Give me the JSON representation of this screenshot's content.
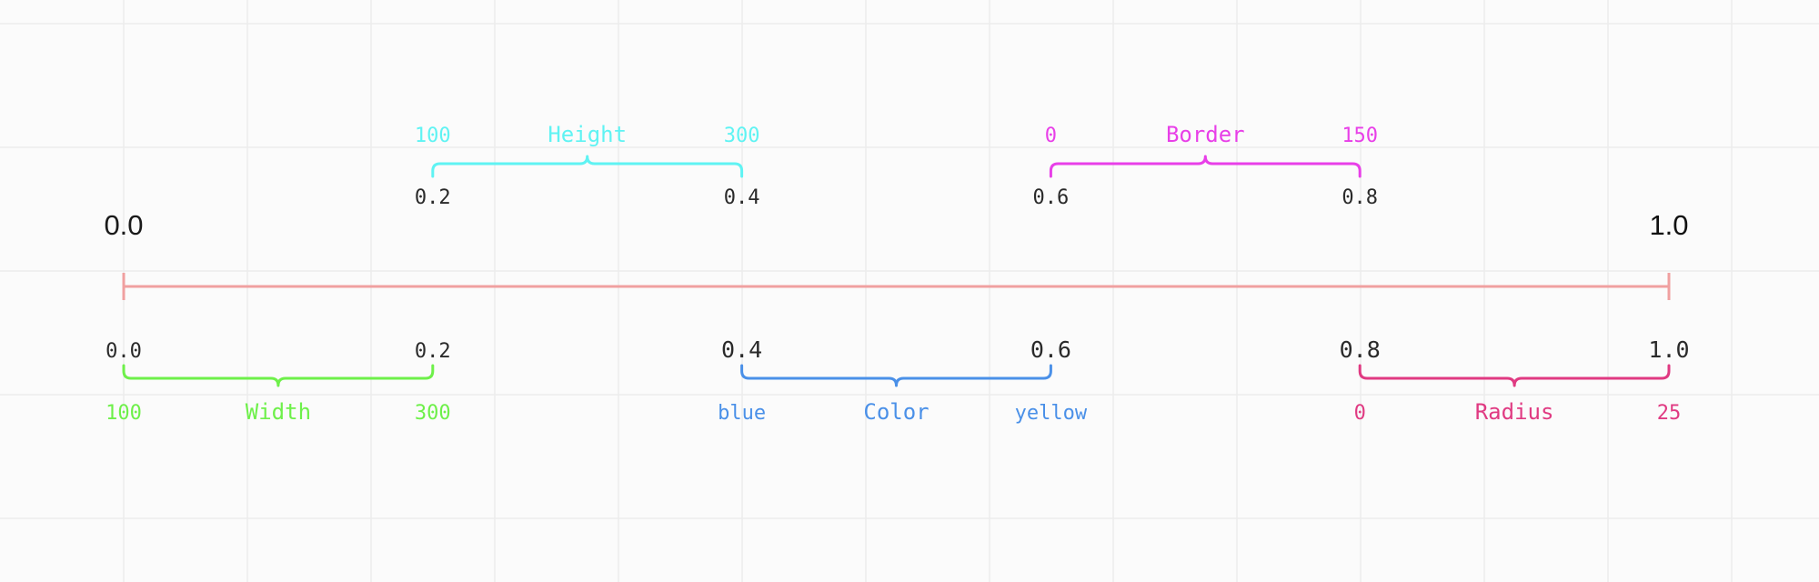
{
  "main_scale": {
    "start_label": "0.0",
    "end_label": "1.0",
    "start": 0.0,
    "end": 1.0,
    "color": "#f0a0a0"
  },
  "brackets": [
    {
      "id": "height",
      "position": "above",
      "label": "Height",
      "start_value": "100",
      "end_value": "300",
      "start_tick": "0.2",
      "end_tick": "0.4",
      "range": [
        0.2,
        0.4
      ],
      "color": "#5ff3f3"
    },
    {
      "id": "border",
      "position": "above",
      "label": "Border",
      "start_value": "0",
      "end_value": "150",
      "start_tick": "0.6",
      "end_tick": "0.8",
      "range": [
        0.6,
        0.8
      ],
      "color": "#e83fe8"
    },
    {
      "id": "width",
      "position": "below",
      "label": "Width",
      "start_value": "100",
      "end_value": "300",
      "start_tick": "0.0",
      "end_tick": "0.2",
      "range": [
        0.0,
        0.2
      ],
      "color": "#6ef04a"
    },
    {
      "id": "color",
      "position": "below",
      "label": "Color",
      "start_value": "blue",
      "end_value": "yellow",
      "start_tick": "0.4",
      "end_tick": "0.6",
      "range": [
        0.4,
        0.6
      ],
      "color": "#4a90e8"
    },
    {
      "id": "radius",
      "position": "below",
      "label": "Radius",
      "start_value": "0",
      "end_value": "25",
      "start_tick": "0.8",
      "end_tick": "1.0",
      "range": [
        0.8,
        1.0
      ],
      "color": "#e03a82"
    }
  ]
}
